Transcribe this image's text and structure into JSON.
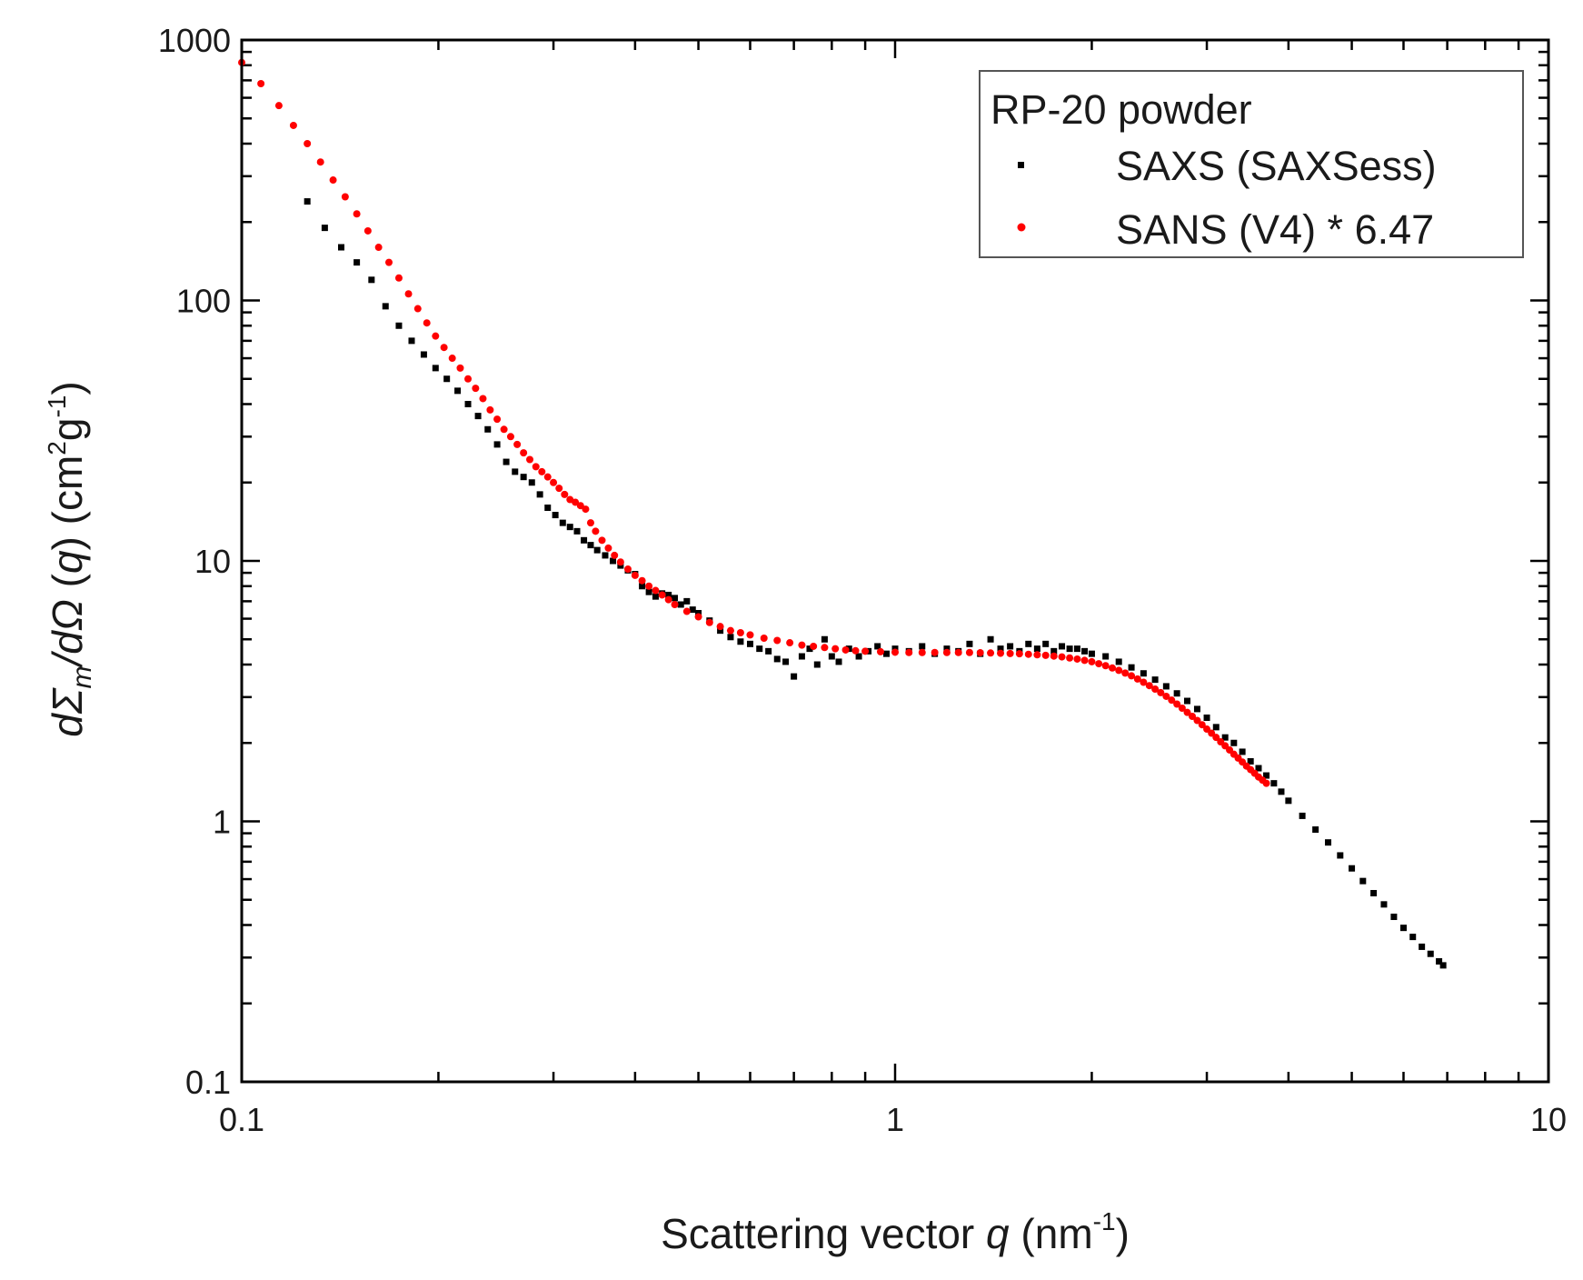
{
  "chart_data": {
    "type": "scatter",
    "title": "",
    "xlabel": {
      "text": "Scattering vector",
      "variable": "q",
      "unit_open": "(nm",
      "unit_exp": "-1",
      "unit_close": ")"
    },
    "ylabel": {
      "d1": "d",
      "sigma": "Σ",
      "sub": "m",
      "slash": "/d",
      "omega": "Ω",
      "q_open": " (",
      "q": "q",
      "q_close": ")",
      "unit_open": " (cm",
      "sup1": "2",
      "g": "g",
      "sup2": "-1",
      "unit_close": ")"
    },
    "x_scale": "log",
    "y_scale": "log",
    "xlim": [
      0.1,
      10
    ],
    "ylim": [
      0.1,
      1000
    ],
    "x_ticks": [
      {
        "value": 0.1,
        "label": "0.1"
      },
      {
        "value": 1,
        "label": "1"
      },
      {
        "value": 10,
        "label": "10"
      }
    ],
    "y_ticks": [
      {
        "value": 0.1,
        "label": "0.1"
      },
      {
        "value": 1,
        "label": "1"
      },
      {
        "value": 10,
        "label": "10"
      },
      {
        "value": 100,
        "label": "100"
      },
      {
        "value": 1000,
        "label": "1000"
      }
    ],
    "grid": false,
    "legend": {
      "placement": "top-right",
      "title": "RP-20 powder",
      "entries": [
        "SAXS (SAXSess)",
        "SANS (V4) * 6.47"
      ]
    },
    "series": [
      {
        "name": "SAXS (SAXSess)",
        "color": "#000000",
        "marker": "square",
        "points": [
          [
            0.126,
            240
          ],
          [
            0.134,
            190
          ],
          [
            0.142,
            160
          ],
          [
            0.15,
            140
          ],
          [
            0.158,
            120
          ],
          [
            0.166,
            95
          ],
          [
            0.174,
            80
          ],
          [
            0.182,
            70
          ],
          [
            0.19,
            62
          ],
          [
            0.198,
            55
          ],
          [
            0.206,
            50
          ],
          [
            0.214,
            45
          ],
          [
            0.222,
            40
          ],
          [
            0.23,
            36
          ],
          [
            0.238,
            32
          ],
          [
            0.246,
            28
          ],
          [
            0.254,
            24
          ],
          [
            0.262,
            22
          ],
          [
            0.27,
            21
          ],
          [
            0.278,
            20
          ],
          [
            0.286,
            18
          ],
          [
            0.294,
            16
          ],
          [
            0.302,
            15
          ],
          [
            0.31,
            14
          ],
          [
            0.318,
            13.5
          ],
          [
            0.326,
            13
          ],
          [
            0.334,
            12
          ],
          [
            0.342,
            11.5
          ],
          [
            0.35,
            11
          ],
          [
            0.36,
            10.5
          ],
          [
            0.37,
            10
          ],
          [
            0.38,
            9.6
          ],
          [
            0.39,
            9.2
          ],
          [
            0.4,
            8.9
          ],
          [
            0.41,
            8.0
          ],
          [
            0.42,
            7.6
          ],
          [
            0.43,
            7.3
          ],
          [
            0.44,
            7.5
          ],
          [
            0.45,
            7.4
          ],
          [
            0.46,
            7.2
          ],
          [
            0.47,
            6.8
          ],
          [
            0.48,
            7.0
          ],
          [
            0.49,
            6.5
          ],
          [
            0.5,
            6.3
          ],
          [
            0.52,
            5.9
          ],
          [
            0.54,
            5.4
          ],
          [
            0.56,
            5.1
          ],
          [
            0.58,
            4.9
          ],
          [
            0.6,
            4.8
          ],
          [
            0.62,
            4.6
          ],
          [
            0.64,
            4.5
          ],
          [
            0.66,
            4.2
          ],
          [
            0.68,
            4.1
          ],
          [
            0.7,
            3.6
          ],
          [
            0.72,
            4.3
          ],
          [
            0.74,
            4.6
          ],
          [
            0.76,
            4.0
          ],
          [
            0.78,
            5.0
          ],
          [
            0.8,
            4.3
          ],
          [
            0.82,
            4.1
          ],
          [
            0.85,
            4.6
          ],
          [
            0.88,
            4.3
          ],
          [
            0.91,
            4.5
          ],
          [
            0.94,
            4.7
          ],
          [
            0.97,
            4.4
          ],
          [
            1.0,
            4.6
          ],
          [
            1.05,
            4.5
          ],
          [
            1.1,
            4.7
          ],
          [
            1.15,
            4.4
          ],
          [
            1.2,
            4.6
          ],
          [
            1.25,
            4.5
          ],
          [
            1.3,
            4.8
          ],
          [
            1.35,
            4.4
          ],
          [
            1.4,
            5.0
          ],
          [
            1.45,
            4.6
          ],
          [
            1.5,
            4.7
          ],
          [
            1.55,
            4.5
          ],
          [
            1.6,
            4.8
          ],
          [
            1.65,
            4.6
          ],
          [
            1.7,
            4.8
          ],
          [
            1.75,
            4.5
          ],
          [
            1.8,
            4.7
          ],
          [
            1.85,
            4.6
          ],
          [
            1.9,
            4.6
          ],
          [
            1.95,
            4.5
          ],
          [
            2.0,
            4.4
          ],
          [
            2.1,
            4.3
          ],
          [
            2.2,
            4.1
          ],
          [
            2.3,
            3.9
          ],
          [
            2.4,
            3.7
          ],
          [
            2.5,
            3.5
          ],
          [
            2.6,
            3.3
          ],
          [
            2.7,
            3.1
          ],
          [
            2.8,
            2.9
          ],
          [
            2.9,
            2.7
          ],
          [
            3.0,
            2.5
          ],
          [
            3.1,
            2.3
          ],
          [
            3.2,
            2.1
          ],
          [
            3.3,
            2.0
          ],
          [
            3.4,
            1.85
          ],
          [
            3.5,
            1.7
          ],
          [
            3.6,
            1.6
          ],
          [
            3.7,
            1.5
          ],
          [
            3.8,
            1.4
          ],
          [
            3.9,
            1.3
          ],
          [
            4.0,
            1.2
          ],
          [
            4.2,
            1.05
          ],
          [
            4.4,
            0.93
          ],
          [
            4.6,
            0.83
          ],
          [
            4.8,
            0.74
          ],
          [
            5.0,
            0.66
          ],
          [
            5.2,
            0.59
          ],
          [
            5.4,
            0.53
          ],
          [
            5.6,
            0.48
          ],
          [
            5.8,
            0.43
          ],
          [
            6.0,
            0.39
          ],
          [
            6.2,
            0.36
          ],
          [
            6.4,
            0.33
          ],
          [
            6.6,
            0.31
          ],
          [
            6.8,
            0.29
          ],
          [
            6.9,
            0.28
          ]
        ]
      },
      {
        "name": "SANS (V4) * 6.47",
        "color": "#ff0000",
        "marker": "circle",
        "points": [
          [
            0.1,
            820
          ],
          [
            0.107,
            680
          ],
          [
            0.114,
            560
          ],
          [
            0.12,
            470
          ],
          [
            0.126,
            400
          ],
          [
            0.132,
            340
          ],
          [
            0.138,
            290
          ],
          [
            0.144,
            250
          ],
          [
            0.15,
            215
          ],
          [
            0.156,
            185
          ],
          [
            0.162,
            160
          ],
          [
            0.168,
            140
          ],
          [
            0.174,
            122
          ],
          [
            0.18,
            106
          ],
          [
            0.186,
            93
          ],
          [
            0.192,
            82
          ],
          [
            0.198,
            73
          ],
          [
            0.204,
            66
          ],
          [
            0.21,
            60
          ],
          [
            0.216,
            55
          ],
          [
            0.222,
            50
          ],
          [
            0.228,
            46
          ],
          [
            0.234,
            42
          ],
          [
            0.24,
            38
          ],
          [
            0.246,
            35
          ],
          [
            0.252,
            32
          ],
          [
            0.258,
            30
          ],
          [
            0.264,
            28
          ],
          [
            0.27,
            26
          ],
          [
            0.276,
            24.5
          ],
          [
            0.282,
            23
          ],
          [
            0.288,
            22
          ],
          [
            0.294,
            21
          ],
          [
            0.3,
            20
          ],
          [
            0.306,
            19
          ],
          [
            0.312,
            18
          ],
          [
            0.318,
            17.2
          ],
          [
            0.324,
            16.8
          ],
          [
            0.33,
            16.3
          ],
          [
            0.336,
            15.8
          ],
          [
            0.342,
            14
          ],
          [
            0.348,
            13
          ],
          [
            0.356,
            12
          ],
          [
            0.364,
            11.2
          ],
          [
            0.372,
            10.5
          ],
          [
            0.38,
            9.9
          ],
          [
            0.39,
            9.3
          ],
          [
            0.4,
            8.8
          ],
          [
            0.41,
            8.4
          ],
          [
            0.42,
            8.0
          ],
          [
            0.43,
            7.7
          ],
          [
            0.44,
            7.4
          ],
          [
            0.45,
            7.1
          ],
          [
            0.46,
            6.8
          ],
          [
            0.48,
            6.4
          ],
          [
            0.5,
            6.1
          ],
          [
            0.52,
            5.8
          ],
          [
            0.54,
            5.6
          ],
          [
            0.56,
            5.4
          ],
          [
            0.58,
            5.3
          ],
          [
            0.6,
            5.2
          ],
          [
            0.63,
            5.05
          ],
          [
            0.66,
            4.95
          ],
          [
            0.69,
            4.85
          ],
          [
            0.72,
            4.75
          ],
          [
            0.75,
            4.7
          ],
          [
            0.78,
            4.65
          ],
          [
            0.81,
            4.6
          ],
          [
            0.84,
            4.55
          ],
          [
            0.87,
            4.52
          ],
          [
            0.9,
            4.5
          ],
          [
            0.95,
            4.48
          ],
          [
            1.0,
            4.46
          ],
          [
            1.05,
            4.45
          ],
          [
            1.1,
            4.45
          ],
          [
            1.15,
            4.45
          ],
          [
            1.2,
            4.45
          ],
          [
            1.25,
            4.45
          ],
          [
            1.3,
            4.45
          ],
          [
            1.35,
            4.44
          ],
          [
            1.4,
            4.43
          ],
          [
            1.45,
            4.42
          ],
          [
            1.5,
            4.41
          ],
          [
            1.55,
            4.4
          ],
          [
            1.6,
            4.38
          ],
          [
            1.65,
            4.36
          ],
          [
            1.7,
            4.34
          ],
          [
            1.75,
            4.31
          ],
          [
            1.8,
            4.28
          ],
          [
            1.85,
            4.24
          ],
          [
            1.9,
            4.2
          ],
          [
            1.95,
            4.15
          ],
          [
            2.0,
            4.1
          ],
          [
            2.05,
            4.03
          ],
          [
            2.1,
            3.96
          ],
          [
            2.15,
            3.88
          ],
          [
            2.2,
            3.8
          ],
          [
            2.25,
            3.71
          ],
          [
            2.3,
            3.62
          ],
          [
            2.35,
            3.52
          ],
          [
            2.4,
            3.42
          ],
          [
            2.45,
            3.32
          ],
          [
            2.5,
            3.22
          ],
          [
            2.55,
            3.12
          ],
          [
            2.6,
            3.02
          ],
          [
            2.65,
            2.92
          ],
          [
            2.7,
            2.82
          ],
          [
            2.75,
            2.72
          ],
          [
            2.8,
            2.62
          ],
          [
            2.85,
            2.53
          ],
          [
            2.9,
            2.44
          ],
          [
            2.95,
            2.35
          ],
          [
            3.0,
            2.26
          ],
          [
            3.05,
            2.18
          ],
          [
            3.1,
            2.1
          ],
          [
            3.15,
            2.02
          ],
          [
            3.2,
            1.95
          ],
          [
            3.25,
            1.88
          ],
          [
            3.3,
            1.81
          ],
          [
            3.35,
            1.75
          ],
          [
            3.4,
            1.69
          ],
          [
            3.45,
            1.63
          ],
          [
            3.5,
            1.58
          ],
          [
            3.55,
            1.53
          ],
          [
            3.6,
            1.48
          ],
          [
            3.65,
            1.44
          ],
          [
            3.7,
            1.4
          ]
        ]
      }
    ]
  }
}
